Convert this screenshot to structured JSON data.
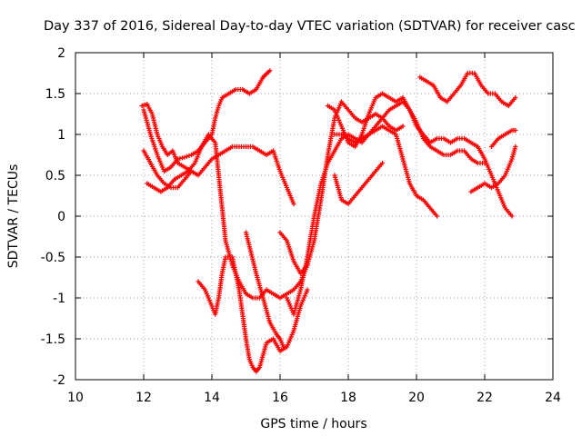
{
  "chart_data": {
    "type": "scatter",
    "title": "Day 337 of 2016, Sidereal Day-to-day VTEC variation (SDTVAR) for receiver casc",
    "xlabel": "GPS time / hours",
    "ylabel": "SDTVAR / TECUs",
    "xlim": [
      10,
      24
    ],
    "ylim": [
      -2,
      2
    ],
    "xticks": [
      10,
      12,
      14,
      16,
      18,
      20,
      22,
      24
    ],
    "yticks": [
      -2,
      -1.5,
      -1,
      -0.5,
      0,
      0.5,
      1,
      1.5,
      2
    ],
    "grid": true,
    "marker": "+",
    "color": "#ff0000",
    "series": [
      {
        "x": [
          11.95,
          12.1,
          12.25,
          12.4,
          12.55,
          12.7,
          12.85,
          13.0,
          13.2,
          13.4
        ],
        "y": [
          1.35,
          1.37,
          1.25,
          1.0,
          0.85,
          0.75,
          0.8,
          0.65,
          0.6,
          0.55
        ]
      },
      {
        "x": [
          12.0,
          12.2,
          12.4,
          12.6,
          12.8,
          13.0,
          13.2,
          13.4,
          13.6,
          13.8,
          14.0,
          14.1,
          14.2,
          14.3,
          14.5,
          14.7,
          14.9,
          15.1,
          15.3,
          15.5,
          15.7
        ],
        "y": [
          1.3,
          1.0,
          0.75,
          0.55,
          0.6,
          0.7,
          0.72,
          0.75,
          0.8,
          0.9,
          1.0,
          1.2,
          1.35,
          1.45,
          1.5,
          1.55,
          1.55,
          1.5,
          1.55,
          1.7,
          1.78
        ]
      },
      {
        "x": [
          12.0,
          12.2,
          12.4,
          12.6,
          12.8,
          13.0,
          13.2,
          13.4,
          13.6,
          13.8,
          14.0,
          14.2,
          14.4,
          14.6,
          14.8,
          15.0,
          15.2,
          15.4,
          15.6,
          15.8,
          16.0,
          16.2,
          16.4
        ],
        "y": [
          0.8,
          0.65,
          0.5,
          0.4,
          0.35,
          0.35,
          0.45,
          0.55,
          0.5,
          0.6,
          0.7,
          0.75,
          0.8,
          0.85,
          0.85,
          0.85,
          0.85,
          0.8,
          0.75,
          0.8,
          0.55,
          0.35,
          0.15
        ]
      },
      {
        "x": [
          12.1,
          12.3,
          12.5,
          12.7,
          12.9,
          13.1,
          13.3,
          13.5,
          13.7,
          13.9,
          14.1,
          14.2,
          14.3,
          14.4,
          14.6,
          14.8,
          15.0,
          15.2,
          15.4,
          15.6,
          15.8,
          16.0,
          16.2,
          16.4,
          16.6,
          16.8
        ],
        "y": [
          0.4,
          0.35,
          0.3,
          0.35,
          0.45,
          0.5,
          0.55,
          0.65,
          0.85,
          1.0,
          0.9,
          0.5,
          0.1,
          -0.3,
          -0.6,
          -0.8,
          -0.95,
          -1.0,
          -1.0,
          -0.9,
          -0.95,
          -1.0,
          -0.95,
          -0.9,
          -0.8,
          -0.6
        ]
      },
      {
        "x": [
          13.6,
          13.8,
          14.0,
          14.1,
          14.2,
          14.3,
          14.4,
          14.6,
          14.8,
          14.9,
          15.0,
          15.1,
          15.2,
          15.3,
          15.4,
          15.5,
          15.6,
          15.8,
          16.0,
          16.2,
          16.4,
          16.6,
          16.8
        ],
        "y": [
          -0.8,
          -0.9,
          -1.1,
          -1.2,
          -1.0,
          -0.7,
          -0.5,
          -0.5,
          -0.9,
          -1.2,
          -1.5,
          -1.75,
          -1.85,
          -1.9,
          -1.85,
          -1.7,
          -1.55,
          -1.5,
          -1.65,
          -1.6,
          -1.4,
          -1.1,
          -0.9
        ]
      },
      {
        "x": [
          15.0,
          15.3,
          15.5,
          15.7,
          15.9,
          16.0,
          16.1
        ],
        "y": [
          -0.2,
          -0.7,
          -1.0,
          -1.3,
          -1.45,
          -1.5,
          -1.6
        ]
      },
      {
        "x": [
          16.0,
          16.2,
          16.4,
          16.6,
          16.8,
          17.0,
          17.2,
          17.4,
          17.6,
          17.8,
          18.0,
          18.2,
          18.4,
          18.6,
          18.8,
          19.0,
          19.2,
          19.4,
          19.6
        ],
        "y": [
          -0.2,
          -0.3,
          -0.55,
          -0.7,
          -0.6,
          -0.3,
          0.2,
          0.75,
          1.2,
          1.4,
          1.3,
          1.2,
          1.15,
          1.2,
          1.25,
          1.2,
          1.1,
          1.05,
          1.1
        ]
      },
      {
        "x": [
          16.2,
          16.4,
          16.6,
          16.8,
          17.0,
          17.2,
          17.4,
          17.6,
          17.8,
          18.0,
          18.2,
          18.4,
          18.6,
          18.8,
          19.0,
          19.2,
          19.4,
          19.6,
          19.8,
          20.0,
          20.2,
          20.4,
          20.6
        ],
        "y": [
          -1.0,
          -1.2,
          -0.9,
          -0.5,
          0.0,
          0.4,
          0.65,
          0.8,
          0.95,
          1.0,
          0.95,
          0.9,
          1.0,
          1.05,
          1.1,
          1.05,
          1.0,
          0.7,
          0.4,
          0.25,
          0.2,
          0.1,
          0.0
        ]
      },
      {
        "x": [
          17.4,
          17.6,
          17.8,
          18.0,
          18.2,
          18.4,
          18.6,
          18.8,
          19.0,
          19.2,
          19.4,
          19.6,
          19.8,
          20.0,
          20.2,
          20.4,
          20.6,
          20.8,
          21.0,
          21.2,
          21.4,
          21.6,
          21.8,
          22.0,
          22.2,
          22.4,
          22.6,
          22.8
        ],
        "y": [
          1.35,
          1.3,
          1.1,
          0.9,
          0.85,
          1.0,
          1.25,
          1.45,
          1.5,
          1.45,
          1.4,
          1.45,
          1.3,
          1.1,
          1.0,
          0.9,
          0.95,
          0.95,
          0.9,
          0.95,
          0.95,
          0.9,
          0.85,
          0.7,
          0.5,
          0.3,
          0.1,
          0.0
        ]
      },
      {
        "x": [
          17.6,
          17.8,
          18.0,
          18.2,
          18.4,
          18.6,
          18.8,
          19.0
        ],
        "y": [
          0.5,
          0.2,
          0.15,
          0.25,
          0.35,
          0.45,
          0.55,
          0.65
        ]
      },
      {
        "x": [
          17.6,
          17.8,
          18.0,
          18.2,
          18.4,
          18.6,
          18.8,
          19.0,
          19.2,
          19.4,
          19.6,
          19.8,
          20.0,
          20.2,
          20.4,
          20.6,
          20.8,
          21.0,
          21.2,
          21.4,
          21.6,
          21.8,
          22.0
        ],
        "y": [
          1.0,
          1.0,
          0.95,
          0.9,
          0.95,
          1.0,
          1.1,
          1.2,
          1.3,
          1.35,
          1.4,
          1.3,
          1.15,
          0.95,
          0.85,
          0.8,
          0.75,
          0.75,
          0.8,
          0.8,
          0.7,
          0.65,
          0.65
        ]
      },
      {
        "x": [
          20.1,
          20.3,
          20.5,
          20.7,
          20.9,
          21.1,
          21.3,
          21.5,
          21.7,
          21.9,
          22.1,
          22.3,
          22.5,
          22.7,
          22.9
        ],
        "y": [
          1.7,
          1.65,
          1.6,
          1.45,
          1.4,
          1.5,
          1.6,
          1.75,
          1.75,
          1.6,
          1.5,
          1.5,
          1.4,
          1.35,
          1.45
        ]
      },
      {
        "x": [
          21.6,
          21.8,
          22.0,
          22.2,
          22.4,
          22.6,
          22.8,
          22.9
        ],
        "y": [
          0.3,
          0.35,
          0.4,
          0.35,
          0.4,
          0.5,
          0.7,
          0.85
        ]
      },
      {
        "x": [
          22.2,
          22.4,
          22.6,
          22.8,
          22.9
        ],
        "y": [
          0.85,
          0.95,
          1.0,
          1.05,
          1.05
        ]
      }
    ]
  }
}
